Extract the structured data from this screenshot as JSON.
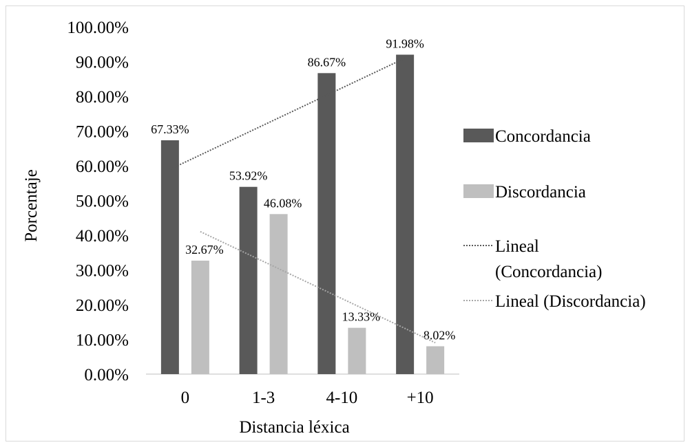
{
  "chart_data": {
    "type": "bar",
    "xlabel": "Distancia léxica",
    "ylabel": "Porcentaje",
    "categories": [
      "0",
      "1-3",
      "4-10",
      "+10"
    ],
    "ylim": [
      0,
      100
    ],
    "ytick_step": 10,
    "ytick_labels": [
      "0.00%",
      "10.00%",
      "20.00%",
      "30.00%",
      "40.00%",
      "50.00%",
      "60.00%",
      "70.00%",
      "80.00%",
      "90.00%",
      "100.00%"
    ],
    "series": [
      {
        "name": "Concordancia",
        "color": "#595959",
        "values": [
          67.33,
          53.92,
          86.67,
          91.98
        ],
        "labels": [
          "67.33%",
          "53.92%",
          "86.67%",
          "91.98%"
        ]
      },
      {
        "name": "Discordancia",
        "color": "#bfbfbf",
        "values": [
          32.67,
          46.08,
          13.33,
          8.02
        ],
        "labels": [
          "32.67%",
          "46.08%",
          "13.33%",
          "8.02%"
        ]
      }
    ],
    "trendlines": [
      {
        "name": "Lineal (Concordancia)",
        "series": "Concordancia",
        "style": "dotted",
        "color": "#595959"
      },
      {
        "name": "Lineal (Discordancia)",
        "series": "Discordancia",
        "style": "dotted",
        "color": "#a6a6a6"
      }
    ],
    "legend": {
      "position": "right",
      "entries": [
        {
          "lines": [
            "Concordancia"
          ],
          "kind": "bar",
          "color": "#595959"
        },
        {
          "lines": [
            "Discordancia"
          ],
          "kind": "bar",
          "color": "#bfbfbf"
        },
        {
          "lines": [
            "Lineal",
            "(Concordancia)"
          ],
          "kind": "dotted",
          "color": "#595959"
        },
        {
          "lines": [
            "Lineal (Discordancia)"
          ],
          "kind": "dotted",
          "color": "#a6a6a6"
        }
      ]
    },
    "grid": false
  }
}
